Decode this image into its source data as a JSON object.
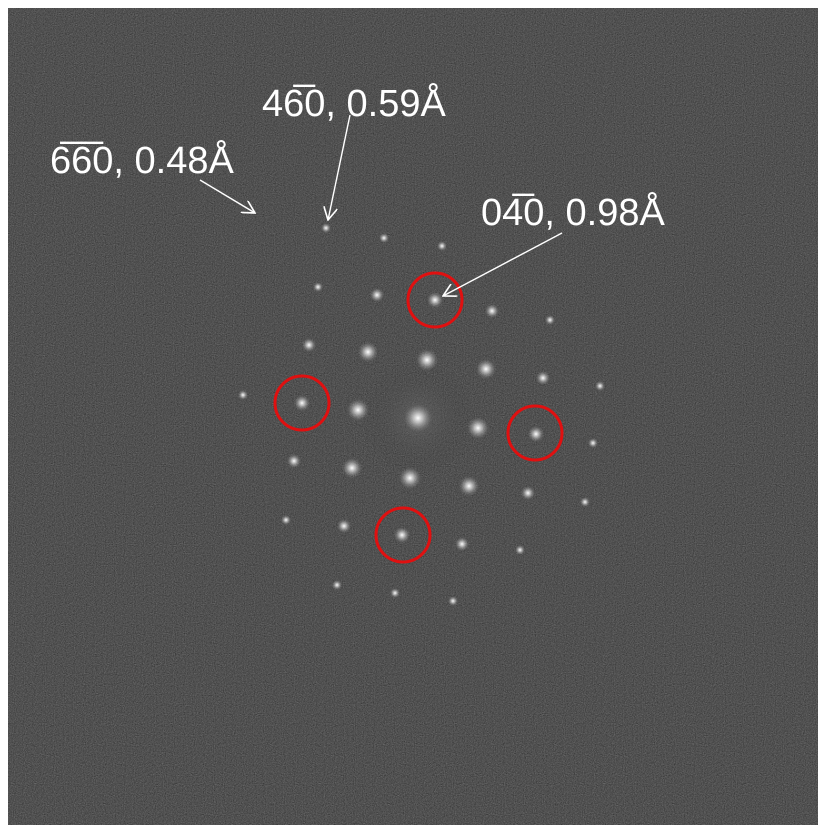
{
  "labels": [
    {
      "text": "6̅6̅0, 0.48Å"
    },
    {
      "text": "46̅0, 0.59Å"
    },
    {
      "text": "04̅0, 0.98Å"
    }
  ]
}
